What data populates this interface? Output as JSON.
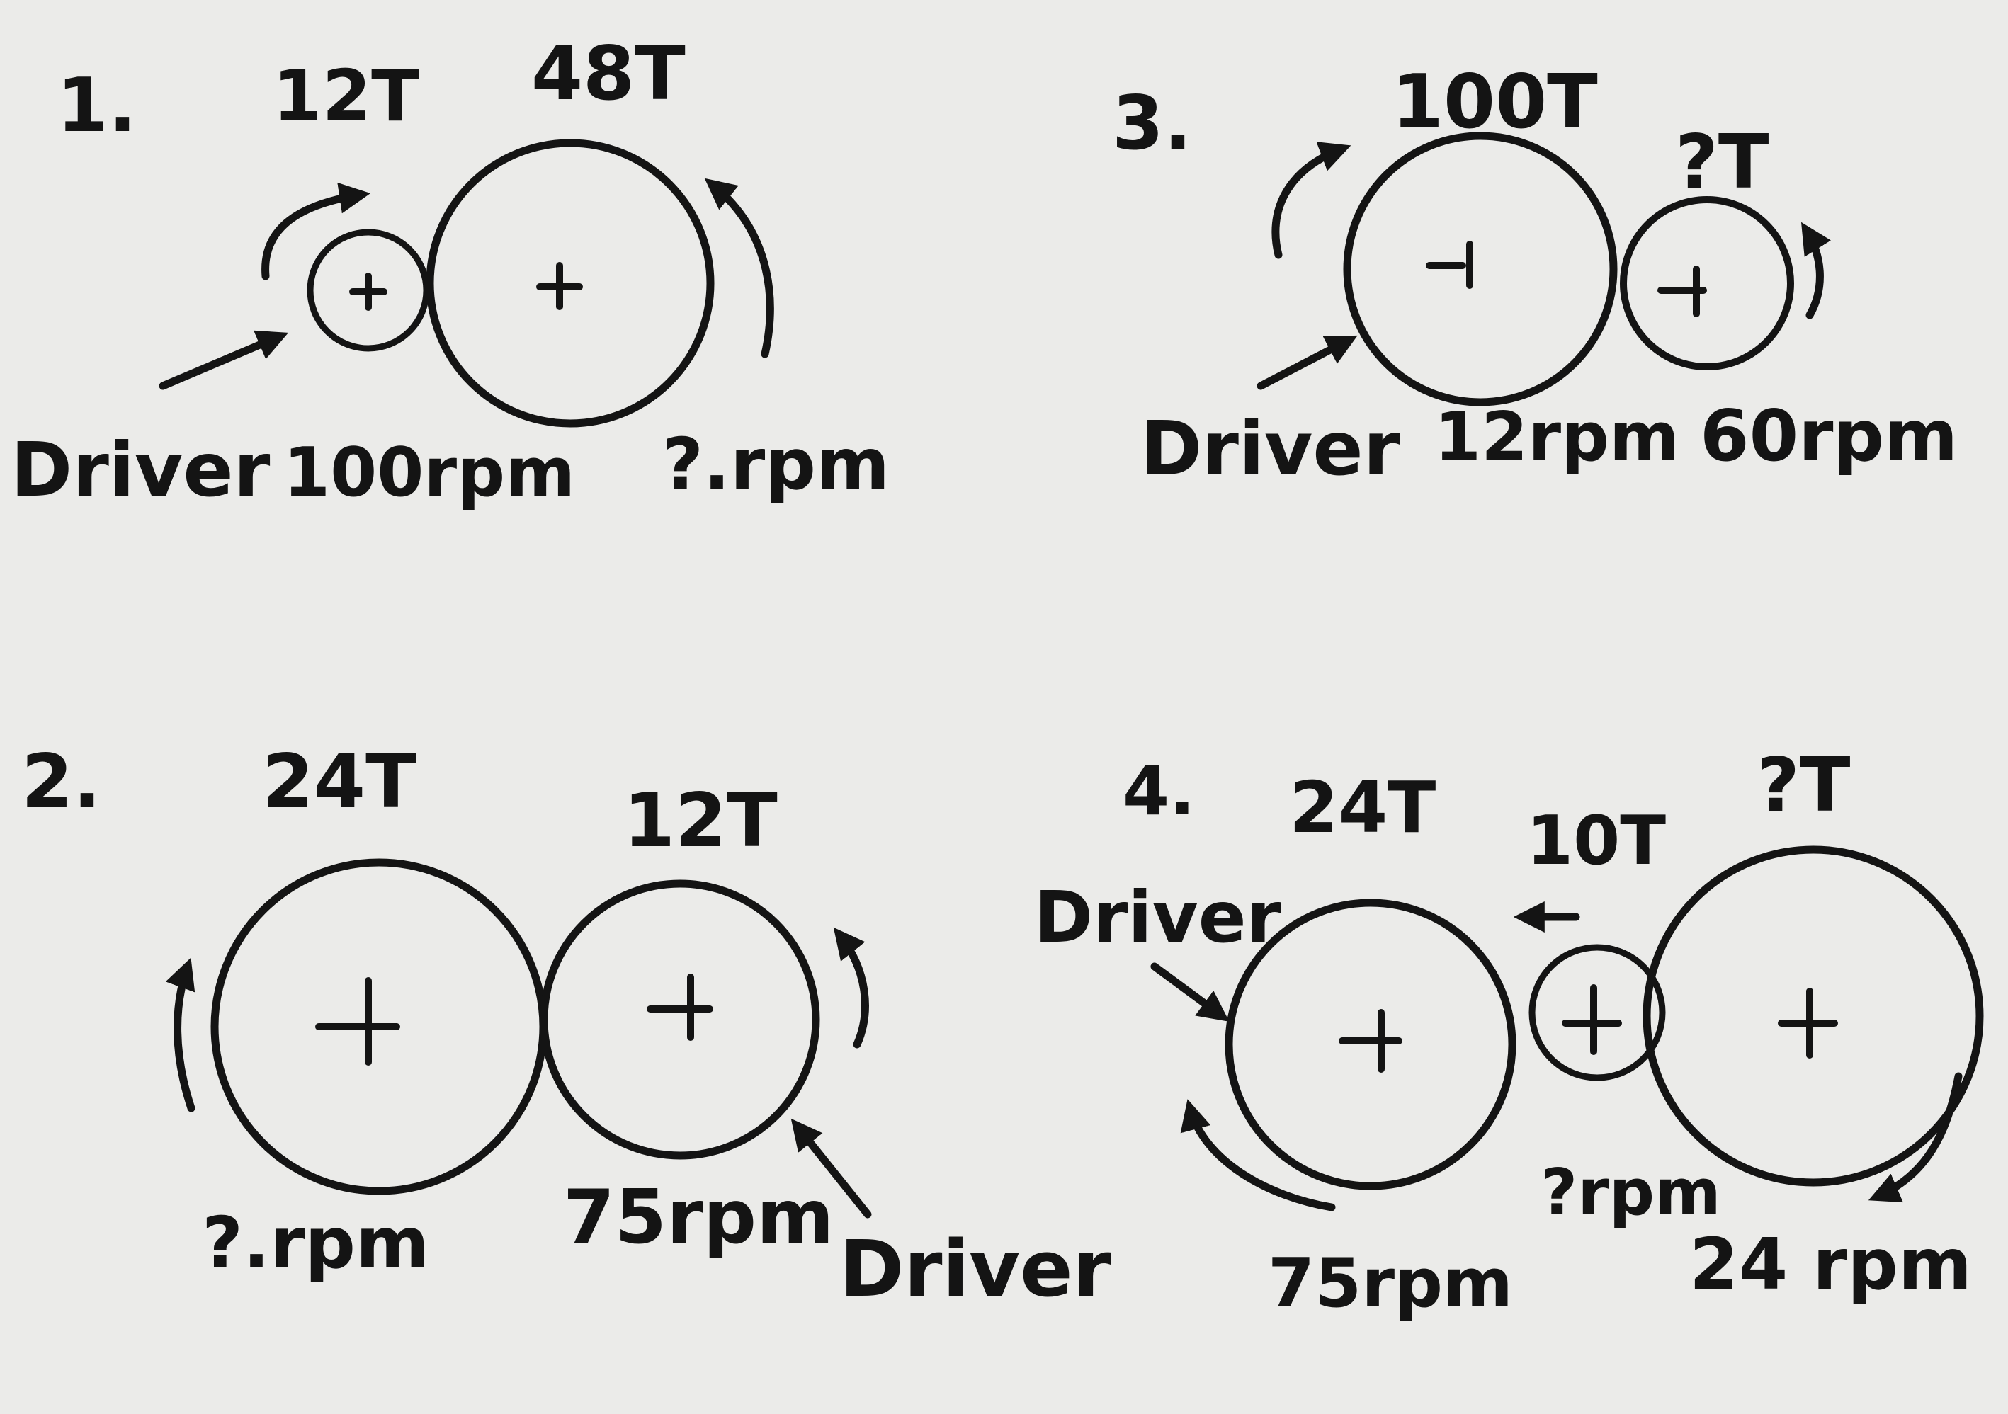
{
  "problems": [
    {
      "number": "1.",
      "gears": [
        {
          "teeth": "12T",
          "speed": "100rpm",
          "driver": true
        },
        {
          "teeth": "48T",
          "speed": "?.rpm",
          "driver": false
        }
      ],
      "driver_label": "Driver"
    },
    {
      "number": "2.",
      "gears": [
        {
          "teeth": "24T",
          "speed": "?.rpm",
          "driver": false
        },
        {
          "teeth": "12T",
          "speed": "75rpm",
          "driver": true
        }
      ],
      "driver_label": "Driver"
    },
    {
      "number": "3.",
      "gears": [
        {
          "teeth": "100T",
          "speed": "12rpm",
          "driver": true
        },
        {
          "teeth": "?T",
          "speed": "60rpm",
          "driver": false
        }
      ],
      "driver_label": "Driver"
    },
    {
      "number": "4.",
      "gears": [
        {
          "teeth": "24T",
          "speed": "75rpm",
          "driver": true
        },
        {
          "teeth": "10T",
          "speed": "?rpm",
          "driver": false
        },
        {
          "teeth": "?T",
          "speed": "24 rpm",
          "driver": false
        }
      ],
      "driver_label": "Driver"
    }
  ],
  "colors": {
    "board": "#ebebe9",
    "ink": "#141414"
  }
}
